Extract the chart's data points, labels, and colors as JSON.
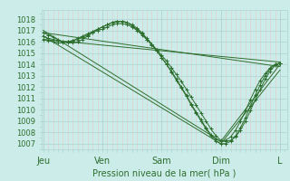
{
  "xlabel": "Pression niveau de la mer( hPa )",
  "bg_color": "#ccecea",
  "grid_major_color": "#aad4d0",
  "grid_minor_v_color": "#e8c8c8",
  "grid_minor_h_color": "#aad4d0",
  "line_color": "#2d6e2d",
  "ylim": [
    1006.5,
    1018.8
  ],
  "yticks": [
    1007,
    1008,
    1009,
    1010,
    1011,
    1012,
    1013,
    1014,
    1015,
    1016,
    1017,
    1018
  ],
  "xtick_labels": [
    "Jeu",
    "Ven",
    "Sam",
    "Dim",
    "L"
  ],
  "xtick_positions": [
    0,
    1,
    2,
    3,
    4
  ],
  "xlim": [
    -0.02,
    4.12
  ],
  "series": [
    {
      "x": [
        0.0,
        0.083,
        0.167,
        0.25,
        0.333,
        0.417,
        0.5,
        0.583,
        0.667,
        0.75,
        0.833,
        0.917,
        1.0,
        1.083,
        1.167,
        1.25,
        1.333,
        1.417,
        1.5,
        1.583,
        1.667,
        1.75,
        1.833,
        1.917,
        2.0,
        2.083,
        2.167,
        2.25,
        2.333,
        2.417,
        2.5,
        2.583,
        2.667,
        2.75,
        2.833,
        2.917,
        3.0,
        3.083,
        3.167,
        3.25,
        3.333,
        3.417,
        3.5,
        3.583,
        3.667,
        3.75,
        3.833,
        3.917,
        4.0
      ],
      "y": [
        1016.5,
        1016.3,
        1016.2,
        1016.1,
        1016.0,
        1016.0,
        1016.1,
        1016.2,
        1016.4,
        1016.6,
        1016.8,
        1017.0,
        1017.1,
        1017.3,
        1017.5,
        1017.6,
        1017.6,
        1017.5,
        1017.3,
        1017.0,
        1016.6,
        1016.2,
        1015.8,
        1015.3,
        1014.8,
        1014.3,
        1013.7,
        1013.1,
        1012.5,
        1011.8,
        1011.1,
        1010.4,
        1009.7,
        1009.0,
        1008.3,
        1007.7,
        1007.3,
        1007.2,
        1007.3,
        1007.6,
        1008.2,
        1009.0,
        1009.9,
        1010.9,
        1011.8,
        1012.7,
        1013.4,
        1013.9,
        1014.1
      ],
      "with_markers": true
    },
    {
      "x": [
        0.0,
        0.083,
        0.167,
        0.25,
        0.333,
        0.417,
        0.5,
        0.583,
        0.667,
        0.75,
        0.833,
        0.917,
        1.0,
        1.083,
        1.167,
        1.25,
        1.333,
        1.417,
        1.5,
        1.583,
        1.667,
        1.75,
        1.833,
        1.917,
        2.0,
        2.083,
        2.167,
        2.25,
        2.333,
        2.417,
        2.5,
        2.583,
        2.667,
        2.75,
        2.833,
        2.917,
        3.0,
        3.083,
        3.167,
        3.25,
        3.333,
        3.417,
        3.5,
        3.583,
        3.667,
        3.75,
        3.833,
        3.917,
        4.0
      ],
      "y": [
        1016.2,
        1016.1,
        1016.0,
        1015.9,
        1015.9,
        1016.0,
        1016.1,
        1016.3,
        1016.5,
        1016.7,
        1016.9,
        1017.1,
        1017.3,
        1017.5,
        1017.7,
        1017.8,
        1017.8,
        1017.7,
        1017.5,
        1017.2,
        1016.8,
        1016.3,
        1015.8,
        1015.2,
        1014.6,
        1014.0,
        1013.3,
        1012.6,
        1011.9,
        1011.2,
        1010.4,
        1009.7,
        1009.0,
        1008.3,
        1007.7,
        1007.2,
        1007.0,
        1007.0,
        1007.2,
        1007.7,
        1008.4,
        1009.3,
        1010.3,
        1011.3,
        1012.2,
        1013.0,
        1013.6,
        1014.0,
        1014.1
      ],
      "with_markers": true
    },
    {
      "x": [
        0.0,
        0.083,
        0.167,
        0.25,
        0.333,
        0.417,
        0.5,
        0.583,
        0.667,
        0.75,
        0.833,
        0.917,
        1.0,
        1.083,
        1.167,
        1.25,
        1.333,
        1.417,
        1.5,
        1.583,
        1.667,
        1.75,
        1.833,
        1.917,
        2.0,
        2.083,
        2.167,
        2.25,
        2.333,
        2.417,
        2.5,
        2.583,
        2.667,
        2.75,
        2.833,
        2.917,
        3.0,
        3.083,
        3.167,
        3.25,
        3.333,
        3.417,
        3.5,
        3.583,
        3.667,
        3.75,
        3.833,
        3.917,
        4.0
      ],
      "y": [
        1016.8,
        1016.6,
        1016.4,
        1016.2,
        1016.0,
        1015.9,
        1015.9,
        1016.0,
        1016.2,
        1016.5,
        1016.8,
        1017.1,
        1017.3,
        1017.5,
        1017.7,
        1017.8,
        1017.8,
        1017.7,
        1017.4,
        1017.1,
        1016.7,
        1016.2,
        1015.7,
        1015.2,
        1014.6,
        1014.0,
        1013.4,
        1012.7,
        1012.0,
        1011.3,
        1010.5,
        1009.8,
        1009.1,
        1008.4,
        1007.8,
        1007.4,
        1007.2,
        1007.3,
        1007.6,
        1008.2,
        1009.0,
        1009.9,
        1010.9,
        1011.8,
        1012.6,
        1013.2,
        1013.7,
        1014.0,
        1014.1
      ],
      "with_markers": true
    },
    {
      "x": [
        0.0,
        4.0
      ],
      "y": [
        1016.8,
        1013.8
      ],
      "with_markers": false,
      "straight": true
    },
    {
      "x": [
        0.0,
        4.0
      ],
      "y": [
        1016.2,
        1014.2
      ],
      "with_markers": false,
      "straight": true
    },
    {
      "x": [
        0.0,
        3.0,
        4.0
      ],
      "y": [
        1017.0,
        1007.2,
        1014.0
      ],
      "with_markers": false,
      "straight": true
    },
    {
      "x": [
        0.0,
        3.0,
        4.0
      ],
      "y": [
        1016.5,
        1007.0,
        1013.5
      ],
      "with_markers": false,
      "straight": true
    }
  ]
}
